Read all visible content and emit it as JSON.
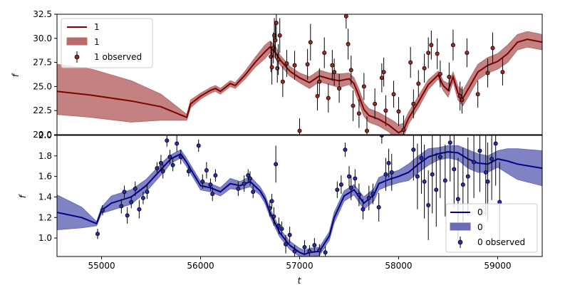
{
  "chart_data": [
    {
      "type": "line",
      "panel": "top",
      "xlabel": "",
      "ylabel": "f",
      "xlim": [
        54550,
        59450
      ],
      "ylim": [
        20,
        32.5
      ],
      "y_ticks": [
        "20.0",
        "22.5",
        "25.0",
        "27.5",
        "30.0",
        "32.5"
      ],
      "grid": false,
      "legend_placement": "top-left",
      "colors": {
        "line": "#800000",
        "band": "#b86b6b",
        "marker": "#a02a1f"
      },
      "legend": {
        "line_label": "1",
        "band_label": "1",
        "obs_label": "1 observed"
      },
      "series": [
        {
          "kind": "prediction_mean",
          "x": [
            54550,
            54900,
            55300,
            55600,
            55860,
            55900,
            56000,
            56100,
            56150,
            56200,
            56300,
            56350,
            56450,
            56550,
            56650,
            56700,
            56750,
            56800,
            56900,
            57000,
            57100,
            57200,
            57300,
            57400,
            57500,
            57550,
            57600,
            57650,
            57700,
            57800,
            57900,
            57950,
            58000,
            58050,
            58100,
            58200,
            58300,
            58400,
            58450,
            58500,
            58550,
            58600,
            58650,
            58700,
            58800,
            58900,
            59000,
            59100,
            59200,
            59300,
            59450
          ],
          "y": [
            24.5,
            24.1,
            23.5,
            22.9,
            21.8,
            23.2,
            24.0,
            24.6,
            24.8,
            24.5,
            25.3,
            25.1,
            26.2,
            27.5,
            28.6,
            29.1,
            28.6,
            27.8,
            26.6,
            25.9,
            25.4,
            26.1,
            25.8,
            25.6,
            25.8,
            25.3,
            24.0,
            22.6,
            22.0,
            21.6,
            21.0,
            20.6,
            20.2,
            20.5,
            21.7,
            23.4,
            25.2,
            26.2,
            25.1,
            24.6,
            26.0,
            24.3,
            23.8,
            24.7,
            26.5,
            27.2,
            27.6,
            28.4,
            29.6,
            29.9,
            29.6
          ]
        },
        {
          "kind": "uncertainty_band",
          "x": [
            54550,
            54900,
            55300,
            55600,
            55860,
            55900,
            56000,
            56100,
            56150,
            56200,
            56300,
            56350,
            56450,
            56550,
            56650,
            56700,
            56750,
            56800,
            56900,
            57000,
            57100,
            57200,
            57300,
            57400,
            57500,
            57550,
            57600,
            57650,
            57700,
            57800,
            57900,
            57950,
            58000,
            58050,
            58100,
            58200,
            58300,
            58400,
            58450,
            58500,
            58550,
            58600,
            58650,
            58700,
            58800,
            58900,
            59000,
            59100,
            59200,
            59300,
            59450
          ],
          "upper": [
            27.3,
            26.8,
            25.6,
            24.2,
            22.1,
            23.6,
            24.3,
            24.9,
            25.1,
            24.8,
            25.6,
            25.4,
            26.6,
            28.0,
            29.3,
            29.7,
            29.3,
            28.3,
            27.1,
            26.4,
            26.0,
            26.7,
            26.4,
            26.3,
            26.4,
            25.9,
            24.7,
            23.3,
            22.7,
            22.3,
            21.7,
            21.4,
            21.0,
            21.2,
            22.3,
            24.0,
            25.7,
            26.6,
            25.6,
            25.3,
            26.5,
            25.0,
            24.6,
            25.5,
            27.3,
            28.0,
            28.4,
            29.3,
            30.4,
            30.7,
            30.4
          ],
          "lower": [
            22.1,
            21.8,
            21.3,
            21.5,
            21.5,
            22.8,
            23.7,
            24.3,
            24.5,
            24.2,
            25.0,
            24.8,
            25.8,
            27.0,
            27.9,
            28.5,
            28.0,
            27.3,
            26.1,
            25.4,
            24.8,
            25.5,
            25.2,
            24.9,
            25.2,
            24.7,
            23.3,
            21.9,
            21.3,
            20.9,
            20.3,
            19.8,
            19.4,
            19.8,
            21.1,
            22.8,
            24.7,
            25.8,
            24.6,
            23.9,
            25.5,
            23.6,
            23.0,
            23.9,
            25.7,
            26.4,
            26.8,
            27.5,
            28.8,
            29.1,
            28.8
          ]
        },
        {
          "kind": "observed",
          "x": [
            56710,
            56720,
            56735,
            56745,
            56755,
            56765,
            56775,
            56785,
            56800,
            56830,
            56870,
            56950,
            57000,
            57080,
            57110,
            57180,
            57200,
            57250,
            57290,
            57330,
            57350,
            57400,
            57470,
            57490,
            57520,
            57540,
            57600,
            57650,
            57680,
            57760,
            57830,
            57850,
            57870,
            57950,
            58000,
            58050,
            58120,
            58150,
            58200,
            58260,
            58300,
            58330,
            58390,
            58420,
            58510,
            58550,
            58620,
            58640,
            58690,
            58800,
            58900,
            58950,
            59050
          ],
          "y": [
            28.1,
            27.0,
            29.0,
            30.3,
            29.8,
            31.6,
            26.9,
            27.8,
            30.3,
            25.5,
            27.4,
            27.2,
            20.4,
            27.3,
            29.6,
            24.0,
            25.5,
            28.5,
            23.8,
            27.2,
            26.5,
            24.8,
            32.3,
            29.4,
            26.7,
            23.0,
            22.2,
            25.0,
            20.4,
            23.2,
            25.9,
            26.5,
            22.5,
            24.2,
            22.4,
            20.5,
            27.5,
            23.2,
            25.3,
            26.9,
            28.5,
            29.3,
            28.4,
            26.3,
            26.0,
            29.3,
            24.0,
            23.6,
            28.5,
            24.2,
            26.4,
            29.0,
            26.5
          ],
          "yerr": [
            1.6,
            1.8,
            1.6,
            1.8,
            1.9,
            1.7,
            1.5,
            1.6,
            1.8,
            1.6,
            1.4,
            1.5,
            1.3,
            1.6,
            1.9,
            1.5,
            1.4,
            1.6,
            1.5,
            1.6,
            1.4,
            1.5,
            1.3,
            1.6,
            1.5,
            1.6,
            1.5,
            1.4,
            1.5,
            1.6,
            1.5,
            1.5,
            1.6,
            1.4,
            1.5,
            1.5,
            1.6,
            1.5,
            1.4,
            1.5,
            1.6,
            1.5,
            1.6,
            1.4,
            1.5,
            1.6,
            1.5,
            1.4,
            1.5,
            1.4,
            1.5,
            1.6,
            1.4
          ]
        }
      ]
    },
    {
      "type": "line",
      "panel": "bottom",
      "xlabel": "t",
      "ylabel": "f",
      "xlim": [
        54550,
        59450
      ],
      "ylim": [
        0.82,
        2.0
      ],
      "y_ticks": [
        "1.0",
        "1.2",
        "1.4",
        "1.6",
        "1.8",
        "2.0"
      ],
      "x_ticks": [
        "55000",
        "56000",
        "57000",
        "58000",
        "59000"
      ],
      "grid": false,
      "legend_placement": "bottom-right",
      "colors": {
        "line": "#00008b",
        "band": "#6a6cb8",
        "marker": "#2a2ab0"
      },
      "legend": {
        "line_label": "0",
        "band_label": "0",
        "obs_label": "0 observed"
      },
      "series": [
        {
          "kind": "prediction_mean",
          "x": [
            54550,
            54800,
            54950,
            55000,
            55100,
            55300,
            55450,
            55650,
            55700,
            55800,
            55850,
            56000,
            56100,
            56200,
            56300,
            56400,
            56500,
            56600,
            56650,
            56700,
            56800,
            56900,
            57000,
            57050,
            57100,
            57200,
            57300,
            57350,
            57450,
            57550,
            57650,
            57750,
            57800,
            57900,
            58000,
            58100,
            58200,
            58300,
            58400,
            58500,
            58600,
            58700,
            58800,
            58900,
            59000,
            59100,
            59200,
            59450
          ],
          "y": [
            1.25,
            1.2,
            1.14,
            1.27,
            1.34,
            1.4,
            1.51,
            1.72,
            1.77,
            1.82,
            1.75,
            1.51,
            1.49,
            1.45,
            1.53,
            1.51,
            1.55,
            1.46,
            1.38,
            1.25,
            1.05,
            0.93,
            0.86,
            0.84,
            0.86,
            0.87,
            1.02,
            1.2,
            1.41,
            1.47,
            1.34,
            1.42,
            1.53,
            1.57,
            1.6,
            1.64,
            1.72,
            1.79,
            1.82,
            1.84,
            1.83,
            1.77,
            1.73,
            1.72,
            1.77,
            1.75,
            1.72,
            1.68
          ]
        },
        {
          "kind": "uncertainty_band",
          "x": [
            54550,
            54800,
            54950,
            55000,
            55100,
            55300,
            55450,
            55650,
            55700,
            55800,
            55850,
            56000,
            56100,
            56200,
            56300,
            56400,
            56500,
            56600,
            56650,
            56700,
            56800,
            56900,
            57000,
            57050,
            57100,
            57200,
            57300,
            57350,
            57450,
            57550,
            57650,
            57750,
            57800,
            57900,
            58000,
            58100,
            58200,
            58300,
            58400,
            58500,
            58600,
            58700,
            58800,
            58900,
            59000,
            59100,
            59200,
            59450
          ],
          "upper": [
            1.42,
            1.3,
            1.16,
            1.3,
            1.41,
            1.47,
            1.57,
            1.77,
            1.81,
            1.86,
            1.79,
            1.55,
            1.53,
            1.49,
            1.58,
            1.55,
            1.6,
            1.5,
            1.42,
            1.29,
            1.09,
            0.97,
            0.9,
            0.88,
            0.9,
            0.91,
            1.06,
            1.25,
            1.46,
            1.52,
            1.4,
            1.48,
            1.59,
            1.63,
            1.66,
            1.72,
            1.8,
            1.87,
            1.88,
            1.9,
            1.9,
            1.86,
            1.82,
            1.8,
            1.85,
            1.87,
            1.87,
            1.85
          ],
          "lower": [
            1.08,
            1.1,
            1.12,
            1.24,
            1.27,
            1.33,
            1.45,
            1.67,
            1.73,
            1.78,
            1.71,
            1.47,
            1.45,
            1.41,
            1.48,
            1.47,
            1.5,
            1.42,
            1.34,
            1.21,
            1.01,
            0.89,
            0.82,
            0.8,
            0.82,
            0.83,
            0.98,
            1.15,
            1.36,
            1.42,
            1.28,
            1.36,
            1.47,
            1.51,
            1.54,
            1.56,
            1.64,
            1.71,
            1.76,
            1.78,
            1.76,
            1.68,
            1.64,
            1.64,
            1.69,
            1.63,
            1.57,
            1.51
          ]
        },
        {
          "kind": "observed",
          "x": [
            54960,
            55010,
            55200,
            55230,
            55260,
            55300,
            55340,
            55380,
            55420,
            55460,
            55560,
            55600,
            55620,
            55660,
            55690,
            55720,
            55760,
            55800,
            55880,
            55980,
            56020,
            56060,
            56100,
            56120,
            56150,
            56380,
            56440,
            56480,
            56500,
            56530,
            56700,
            56720,
            56740,
            56760,
            56790,
            56820,
            56860,
            56900,
            56950,
            57050,
            57100,
            57150,
            57200,
            57260,
            57380,
            57420,
            57460,
            57500,
            57520,
            57560,
            57600,
            57640,
            57700,
            57740,
            57800,
            57830,
            57870,
            57900,
            57930,
            58150,
            58190,
            58230,
            58260,
            58300,
            58340,
            58380,
            58420,
            58470,
            58520,
            58560,
            58600,
            58650,
            58700,
            58760,
            58820,
            58880,
            58900,
            58940,
            58980,
            59020
          ],
          "y": [
            1.04,
            1.27,
            1.31,
            1.45,
            1.22,
            1.35,
            1.48,
            1.28,
            1.39,
            1.45,
            1.68,
            1.73,
            1.65,
            1.95,
            1.79,
            1.71,
            1.92,
            1.79,
            1.65,
            1.9,
            1.55,
            1.66,
            1.52,
            1.43,
            1.61,
            1.48,
            1.53,
            1.61,
            1.58,
            1.45,
            1.29,
            1.36,
            1.21,
            1.72,
            1.12,
            1.09,
            0.94,
            1.03,
            0.87,
            0.91,
            0.87,
            0.93,
            0.88,
            0.86,
            1.47,
            1.52,
            1.86,
            1.6,
            1.49,
            1.58,
            1.42,
            1.28,
            1.39,
            1.43,
            1.3,
            2.0,
            1.62,
            1.73,
            1.64,
            1.86,
            1.6,
            1.78,
            1.55,
            1.32,
            1.62,
            1.47,
            1.79,
            1.56,
            1.93,
            1.67,
            1.38,
            1.52,
            1.6,
            1.74,
            1.85,
            1.64,
            1.55,
            1.77,
            1.92,
            1.35
          ],
          "yerr": [
            0.05,
            0.05,
            0.07,
            0.06,
            0.08,
            0.06,
            0.07,
            0.09,
            0.06,
            0.07,
            0.06,
            0.08,
            0.07,
            0.06,
            0.07,
            0.06,
            0.08,
            0.07,
            0.05,
            0.06,
            0.07,
            0.08,
            0.06,
            0.07,
            0.06,
            0.07,
            0.08,
            0.06,
            0.07,
            0.06,
            0.08,
            0.07,
            0.09,
            0.18,
            0.08,
            0.07,
            0.09,
            0.08,
            0.06,
            0.07,
            0.06,
            0.07,
            0.06,
            0.06,
            0.08,
            0.09,
            0.07,
            0.1,
            0.12,
            0.09,
            0.11,
            0.1,
            0.12,
            0.1,
            0.14,
            0.08,
            0.16,
            0.14,
            0.18,
            0.3,
            0.32,
            0.35,
            0.36,
            0.34,
            0.38,
            0.36,
            0.4,
            0.35,
            0.38,
            0.37,
            0.4,
            0.36,
            0.38,
            0.35,
            0.4,
            0.42,
            0.38,
            0.4,
            0.41,
            0.39
          ]
        }
      ]
    }
  ]
}
